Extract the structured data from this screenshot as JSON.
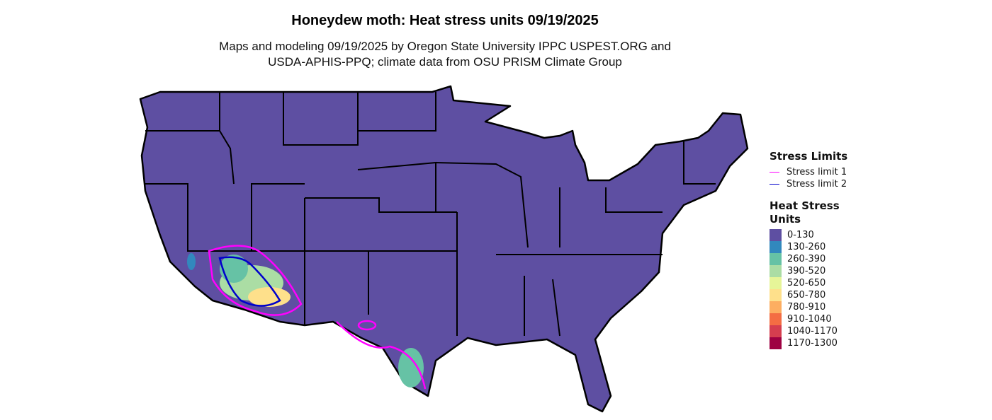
{
  "title": "Honeydew moth: Heat stress units 09/19/2025",
  "subtitle_line1": "Maps and modeling 09/19/2025 by Oregon State University IPPC USPEST.ORG and",
  "subtitle_line2": "USDA-APHIS-PPQ; climate data from OSU PRISM Climate Group",
  "legend": {
    "stress_title": "Stress Limits",
    "stress_items": [
      {
        "label": "Stress limit 1",
        "color": "#FF00FF"
      },
      {
        "label": "Stress limit 2",
        "color": "#0000CC"
      }
    ],
    "heat_title_1": "Heat Stress",
    "heat_title_2": "Units",
    "heat_items": [
      {
        "label": "0-130",
        "color": "#5E4FA2"
      },
      {
        "label": "130-260",
        "color": "#3288BD"
      },
      {
        "label": "260-390",
        "color": "#66C2A5"
      },
      {
        "label": "390-520",
        "color": "#ABDDA4"
      },
      {
        "label": "520-650",
        "color": "#E6F598"
      },
      {
        "label": "650-780",
        "color": "#FEE08B"
      },
      {
        "label": "780-910",
        "color": "#FDAE61"
      },
      {
        "label": "910-1040",
        "color": "#F46D43"
      },
      {
        "label": "1040-1170",
        "color": "#D53E4F"
      },
      {
        "label": "1170-1300",
        "color": "#9E0142"
      }
    ]
  }
}
